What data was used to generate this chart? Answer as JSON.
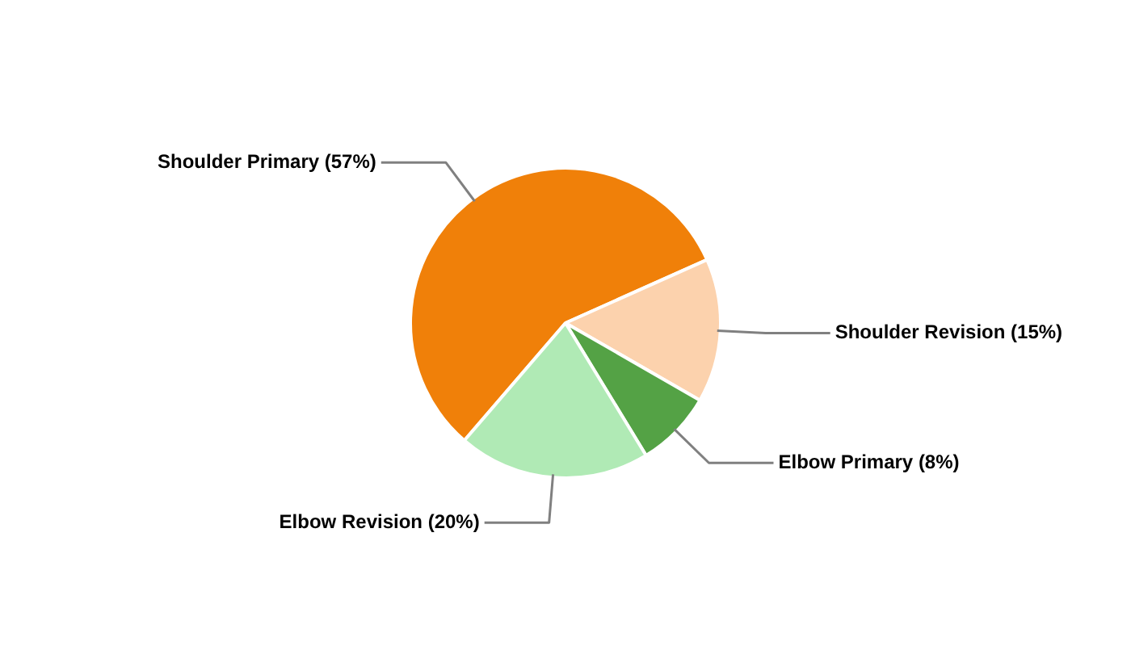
{
  "chart_data": {
    "type": "pie",
    "categories": [
      "Shoulder Primary (57%)",
      "Shoulder Revision (15%)",
      "Elbow Primary (8%)",
      "Elbow Revision (20%)"
    ],
    "values": [
      57,
      15,
      8,
      20
    ],
    "colors": [
      "#f08009",
      "#fcd2ad",
      "#54a245",
      "#b0eab5"
    ]
  }
}
